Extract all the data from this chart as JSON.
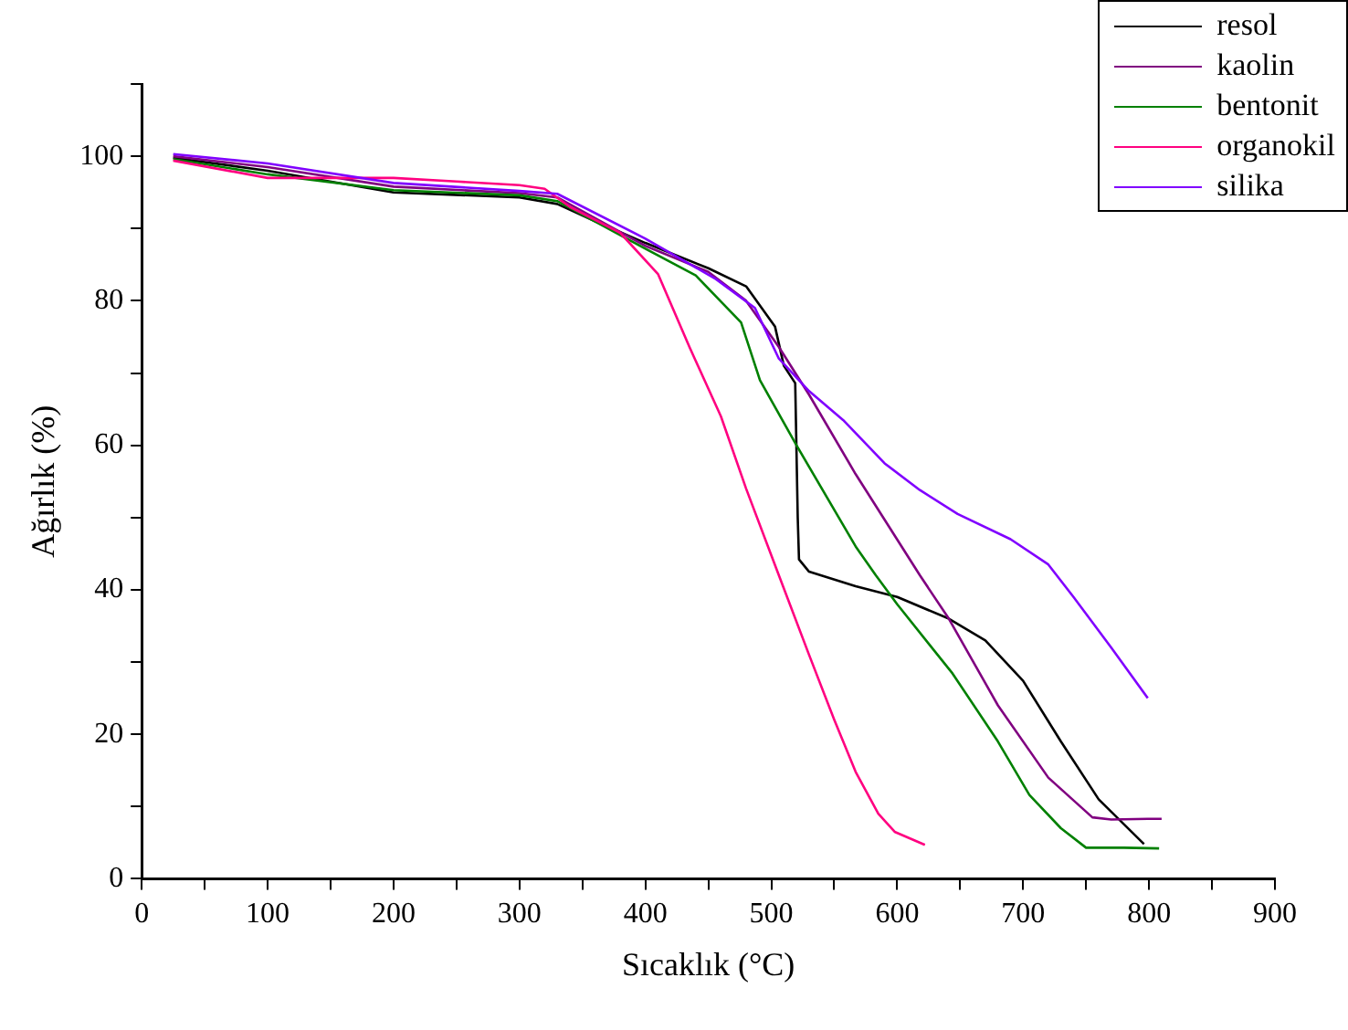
{
  "chart_data": {
    "type": "line",
    "xlabel": "Sıcaklık (°C)",
    "ylabel": "Ağırlık (%)",
    "xlim": [
      0,
      900
    ],
    "ylim": [
      0,
      110
    ],
    "xticks": [
      0,
      {
        "value": 50,
        "label": null
      },
      100,
      {
        "value": 150,
        "label": null
      },
      200,
      {
        "value": 250,
        "label": null
      },
      300,
      {
        "value": 350,
        "label": null
      },
      400,
      {
        "value": 450,
        "label": null
      },
      500,
      {
        "value": 550,
        "label": null
      },
      600,
      {
        "value": 650,
        "label": null
      },
      700,
      {
        "value": 750,
        "label": null
      },
      800,
      {
        "value": 850,
        "label": null
      },
      900
    ],
    "yticks": [
      0,
      {
        "value": 10,
        "label": null
      },
      20,
      {
        "value": 30,
        "label": null
      },
      40,
      {
        "value": 50,
        "label": null
      },
      60,
      {
        "value": 70,
        "label": null
      },
      80,
      {
        "value": 90,
        "label": null
      },
      100,
      {
        "value": 110,
        "label": null
      }
    ],
    "grid": false,
    "legend": "top right",
    "marker": "none",
    "line_style": "solid",
    "series": [
      {
        "name": "resol",
        "color": "#000000",
        "x": [
          25,
          100,
          200,
          300,
          330,
          360,
          400,
          450,
          480,
          503,
          510,
          519,
          521,
          522,
          530,
          567,
          600,
          641,
          670,
          700,
          730,
          760,
          796
        ],
        "values": [
          99.8,
          98,
          95,
          94.3,
          93.4,
          91,
          88,
          84.5,
          82,
          76.4,
          71,
          68.6,
          50,
          44.2,
          42.5,
          40.5,
          39,
          36,
          33,
          27.4,
          19,
          11,
          4.8
        ]
      },
      {
        "name": "kaolin",
        "color": "#800080",
        "x": [
          25,
          100,
          200,
          300,
          330,
          400,
          450,
          480,
          506,
          530,
          567,
          618,
          641,
          680,
          720,
          755,
          770,
          799,
          810
        ],
        "values": [
          100,
          98.5,
          95.8,
          94.9,
          94.3,
          87.6,
          84,
          80,
          73.6,
          67,
          56,
          42,
          36,
          24,
          14,
          8.5,
          8.2,
          8.3,
          8.3
        ]
      },
      {
        "name": "bentonit",
        "color": "#008000",
        "x": [
          25,
          100,
          200,
          300,
          330,
          400,
          440,
          476,
          491,
          520,
          567,
          583,
          600,
          644,
          680,
          705,
          730,
          750,
          780,
          808
        ],
        "values": [
          99.6,
          97.5,
          95.3,
          94.6,
          93.8,
          87.2,
          83.5,
          77,
          69,
          60,
          46,
          42,
          38,
          28.4,
          19,
          11.6,
          7,
          4.3,
          4.3,
          4.2
        ]
      },
      {
        "name": "organokil",
        "color": "#ff0080",
        "x": [
          25,
          100,
          200,
          250,
          300,
          320,
          340,
          380,
          410,
          435,
          460,
          480,
          506,
          530,
          550,
          567,
          585,
          598,
          622
        ],
        "values": [
          99.4,
          97,
          97,
          96.5,
          96,
          95.5,
          93,
          89.4,
          83.7,
          73.6,
          64,
          54,
          42,
          31,
          22,
          14.8,
          9,
          6.5,
          4.7
        ]
      },
      {
        "name": "silika",
        "color": "#8000ff",
        "x": [
          25,
          100,
          200,
          300,
          330,
          400,
          456,
          487,
          506,
          530,
          557,
          590,
          618,
          648,
          690,
          720,
          740,
          770,
          799
        ],
        "values": [
          100.3,
          99,
          96.3,
          95.2,
          94.8,
          88.6,
          83,
          79,
          72,
          67.5,
          63.5,
          57.5,
          53.8,
          50.5,
          47,
          43.5,
          39,
          32,
          25
        ]
      }
    ]
  }
}
